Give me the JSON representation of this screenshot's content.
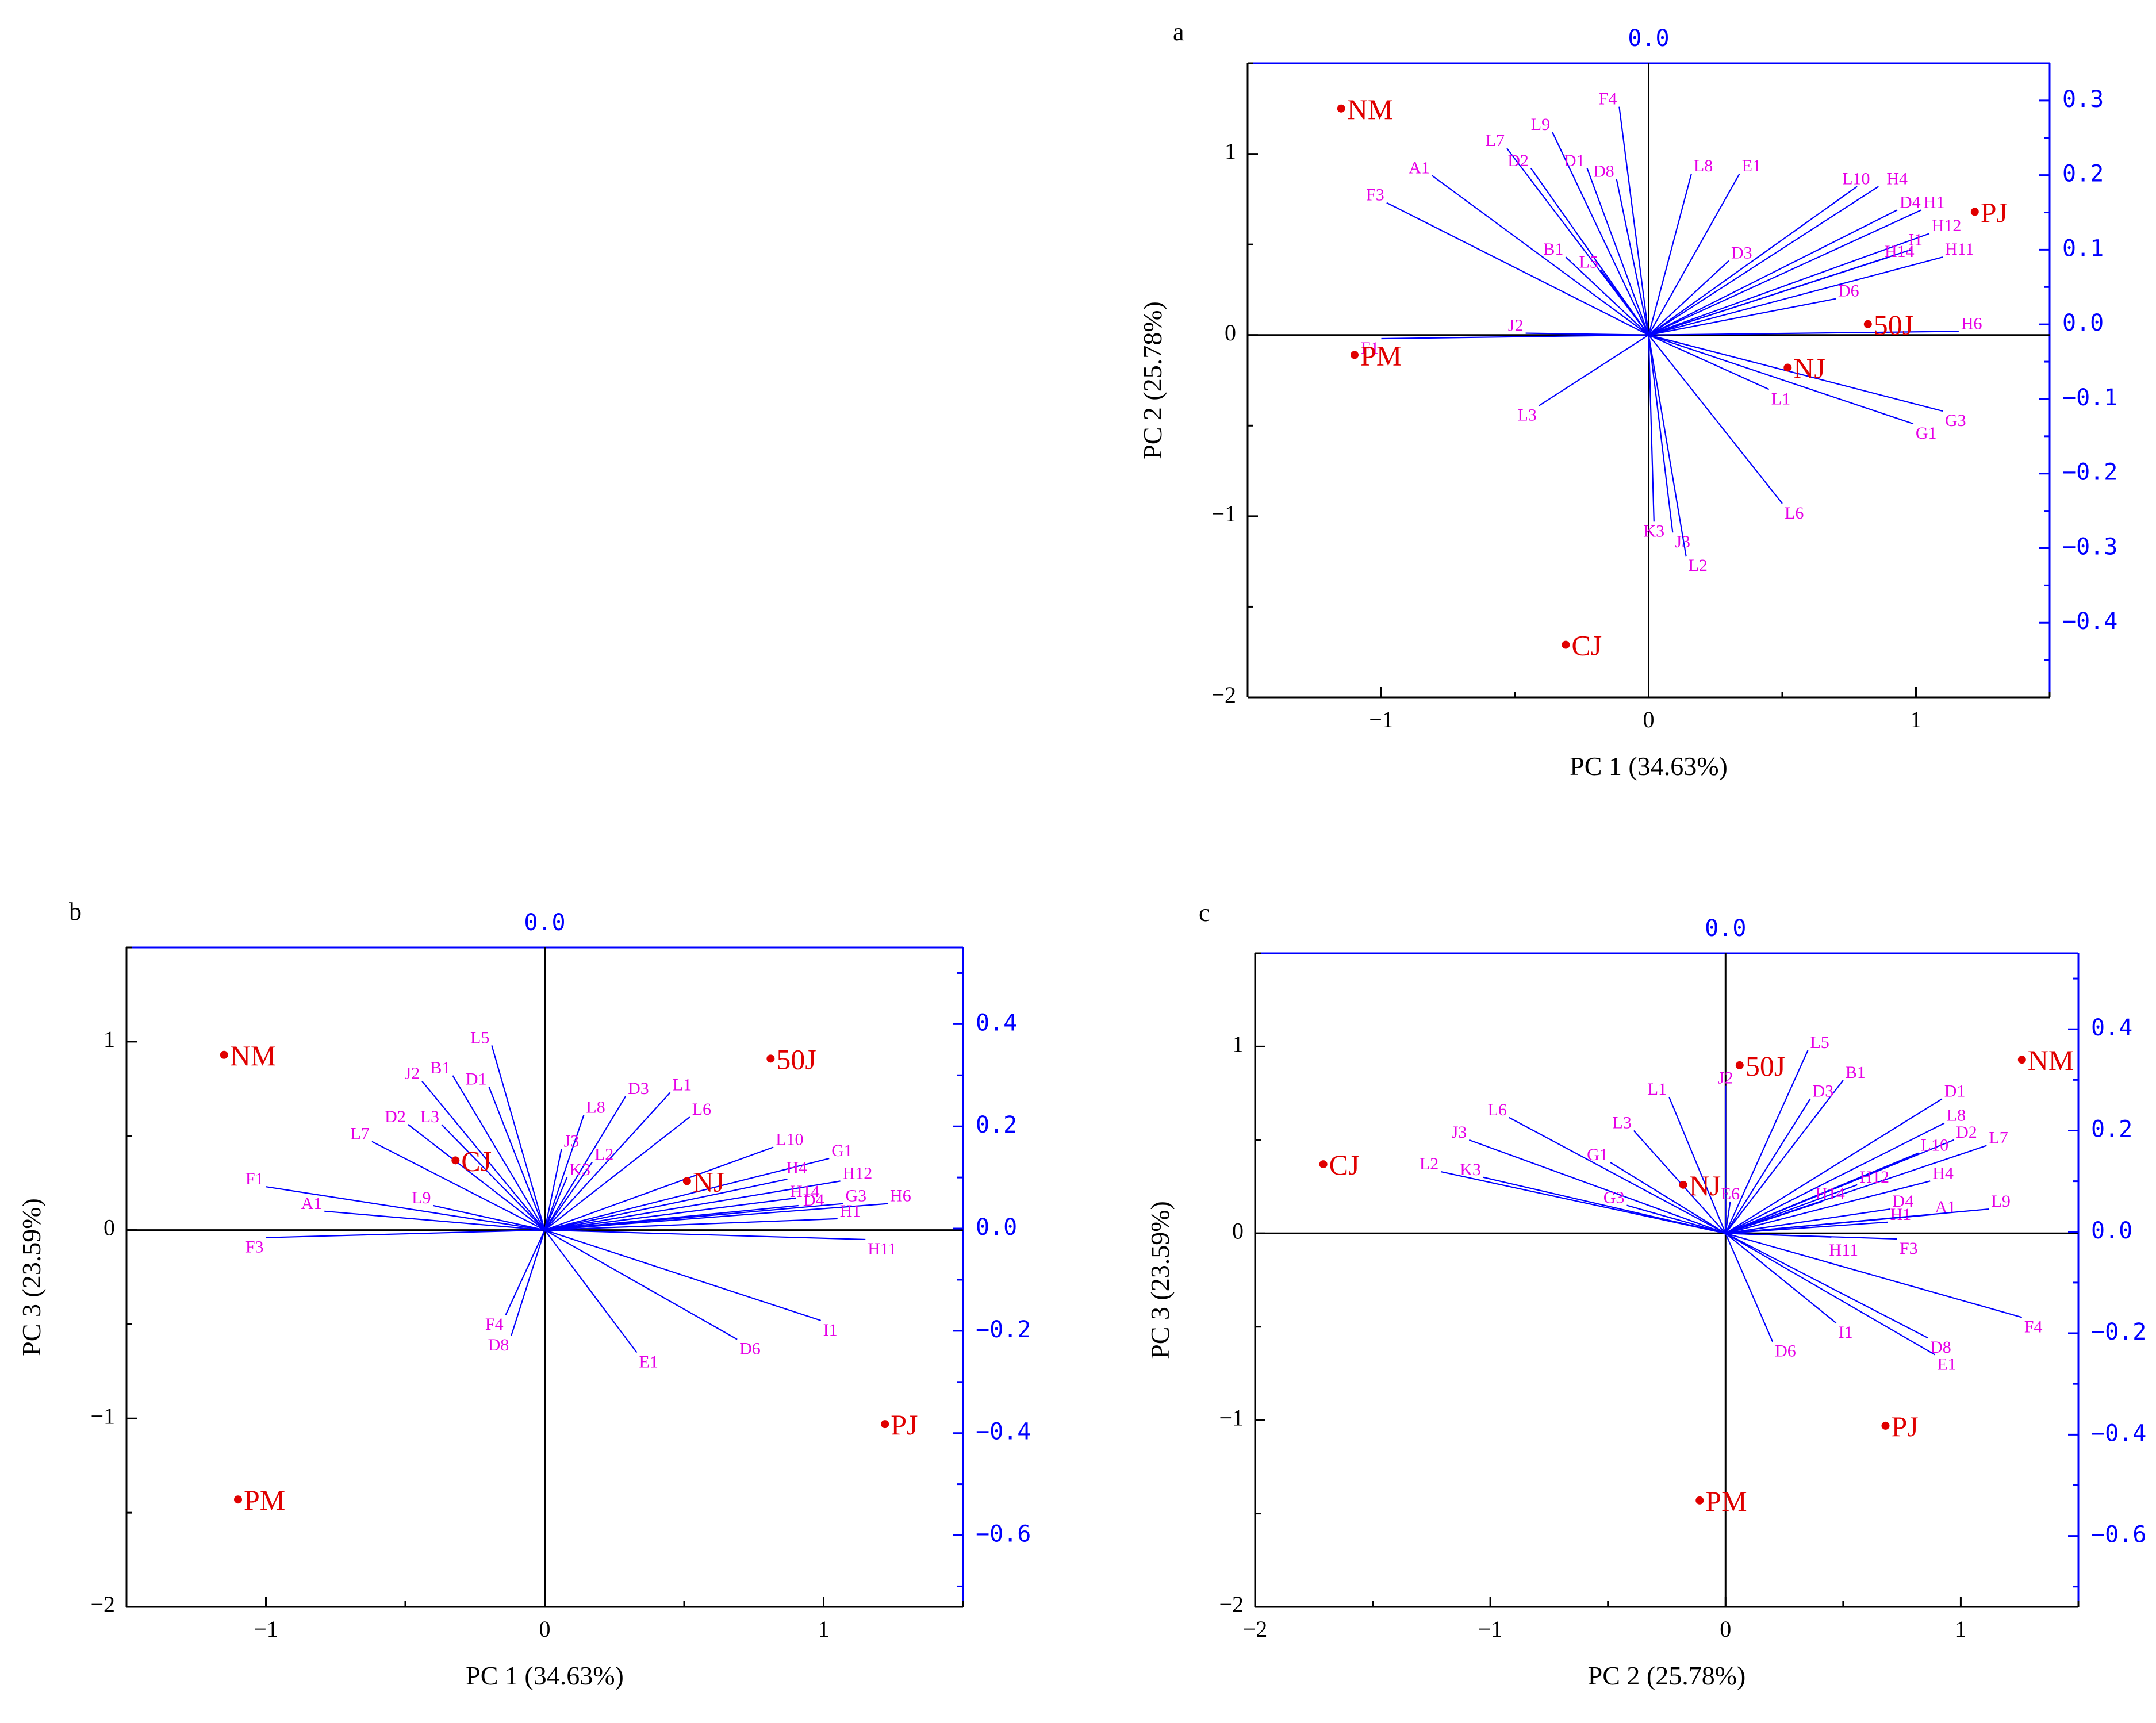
{
  "colors": {
    "frame": "#000000",
    "secondary_axis": "#0000ff",
    "loading": "#0000ff",
    "loading_label": "#e600e6",
    "score": "#e00000"
  },
  "chart_data": [
    {
      "type": "scatter",
      "panel": "a",
      "xlabel": "PC 1 (34.63%)",
      "ylabel": "PC 2 (25.78%)",
      "xlim": [
        -1.5,
        1.5
      ],
      "ylim": [
        -2,
        1.5
      ],
      "xticks": [
        -1,
        0,
        1
      ],
      "yticks": [
        -2,
        -1,
        0,
        1
      ],
      "x_tick_labels": [
        "−1",
        "0",
        "1"
      ],
      "y_tick_labels": [
        "−2",
        "−1",
        "0",
        "1"
      ],
      "top_tick_labels": [
        "0.0"
      ],
      "right_range": [
        -0.5,
        0.35
      ],
      "right_ticks": [
        -0.4,
        -0.3,
        -0.2,
        -0.1,
        0.0,
        0.1,
        0.2,
        0.3
      ],
      "right_tick_labels": [
        "−0.4",
        "−0.3",
        "−0.2",
        "−0.1",
        "0.0",
        "0.1",
        "0.2",
        "0.3"
      ],
      "scores": [
        {
          "label": "NM",
          "x": -1.15,
          "y": 1.25
        },
        {
          "label": "PJ",
          "x": 1.22,
          "y": 0.68
        },
        {
          "label": "50J",
          "x": 0.82,
          "y": 0.06
        },
        {
          "label": "NJ",
          "x": 0.52,
          "y": -0.18
        },
        {
          "label": "PM",
          "x": -1.1,
          "y": -0.11
        },
        {
          "label": "CJ",
          "x": -0.31,
          "y": -1.71
        }
      ],
      "loadings": [
        {
          "label": "F4",
          "x": -0.11,
          "y": 1.26
        },
        {
          "label": "L9",
          "x": -0.36,
          "y": 1.12
        },
        {
          "label": "L7",
          "x": -0.53,
          "y": 1.03
        },
        {
          "label": "A1",
          "x": -0.81,
          "y": 0.88
        },
        {
          "label": "D2",
          "x": -0.44,
          "y": 0.92
        },
        {
          "label": "D1",
          "x": -0.23,
          "y": 0.92
        },
        {
          "label": "D8",
          "x": -0.12,
          "y": 0.86
        },
        {
          "label": "F3",
          "x": -0.98,
          "y": 0.73
        },
        {
          "label": "B1",
          "x": -0.31,
          "y": 0.43
        },
        {
          "label": "L5",
          "x": -0.18,
          "y": 0.36
        },
        {
          "label": "L8",
          "x": 0.16,
          "y": 0.89
        },
        {
          "label": "E1",
          "x": 0.34,
          "y": 0.89
        },
        {
          "label": "L10",
          "x": 0.78,
          "y": 0.82
        },
        {
          "label": "H4",
          "x": 0.86,
          "y": 0.82
        },
        {
          "label": "D4",
          "x": 0.93,
          "y": 0.69
        },
        {
          "label": "H1",
          "x": 1.02,
          "y": 0.69
        },
        {
          "label": "H12",
          "x": 1.05,
          "y": 0.56
        },
        {
          "label": "I1",
          "x": 0.98,
          "y": 0.47
        },
        {
          "label": "H14",
          "x": 0.9,
          "y": 0.43
        },
        {
          "label": "H11",
          "x": 1.1,
          "y": 0.43
        },
        {
          "label": "D3",
          "x": 0.3,
          "y": 0.41
        },
        {
          "label": "D6",
          "x": 0.7,
          "y": 0.2
        },
        {
          "label": "H6",
          "x": 1.16,
          "y": 0.02
        },
        {
          "label": "F1",
          "x": -1.0,
          "y": -0.02
        },
        {
          "label": "J2",
          "x": -0.46,
          "y": 0.01
        },
        {
          "label": "L1",
          "x": 0.45,
          "y": -0.3
        },
        {
          "label": "G3",
          "x": 1.1,
          "y": -0.42
        },
        {
          "label": "G1",
          "x": 0.99,
          "y": -0.49
        },
        {
          "label": "L3",
          "x": -0.41,
          "y": -0.39
        },
        {
          "label": "L6",
          "x": 0.5,
          "y": -0.93
        },
        {
          "label": "K3",
          "x": 0.02,
          "y": -1.03
        },
        {
          "label": "J3",
          "x": 0.09,
          "y": -1.09
        },
        {
          "label": "L2",
          "x": 0.14,
          "y": -1.22
        }
      ]
    },
    {
      "type": "scatter",
      "panel": "b",
      "xlabel": "PC 1 (34.63%)",
      "ylabel": "PC 3 (23.59%)",
      "xlim": [
        -1.5,
        1.5
      ],
      "ylim": [
        -2,
        1.5
      ],
      "xticks": [
        -1,
        0,
        1
      ],
      "yticks": [
        -2,
        -1,
        0,
        1
      ],
      "x_tick_labels": [
        "−1",
        "0",
        "1"
      ],
      "y_tick_labels": [
        "−2",
        "−1",
        "0",
        "1"
      ],
      "top_tick_labels": [
        "0.0"
      ],
      "right_range": [
        -0.74,
        0.55
      ],
      "right_ticks": [
        -0.6,
        -0.4,
        -0.2,
        0.0,
        0.2,
        0.4
      ],
      "right_tick_labels": [
        "−0.6",
        "−0.4",
        "−0.2",
        "0.0",
        "0.2",
        "0.4"
      ],
      "scores": [
        {
          "label": "NM",
          "x": -1.15,
          "y": 0.93
        },
        {
          "label": "50J",
          "x": 0.81,
          "y": 0.91
        },
        {
          "label": "CJ",
          "x": -0.32,
          "y": 0.37
        },
        {
          "label": "NJ",
          "x": 0.51,
          "y": 0.26
        },
        {
          "label": "PJ",
          "x": 1.22,
          "y": -1.03
        },
        {
          "label": "PM",
          "x": -1.1,
          "y": -1.43
        }
      ],
      "loadings": [
        {
          "label": "L5",
          "x": -0.19,
          "y": 0.98
        },
        {
          "label": "J2",
          "x": -0.44,
          "y": 0.79
        },
        {
          "label": "B1",
          "x": -0.33,
          "y": 0.82
        },
        {
          "label": "D1",
          "x": -0.2,
          "y": 0.76
        },
        {
          "label": "D2",
          "x": -0.49,
          "y": 0.56
        },
        {
          "label": "L3",
          "x": -0.37,
          "y": 0.56
        },
        {
          "label": "L7",
          "x": -0.62,
          "y": 0.47
        },
        {
          "label": "F1",
          "x": -1.0,
          "y": 0.23
        },
        {
          "label": "A1",
          "x": -0.79,
          "y": 0.1
        },
        {
          "label": "L9",
          "x": -0.4,
          "y": 0.13
        },
        {
          "label": "F3",
          "x": -1.0,
          "y": -0.04
        },
        {
          "label": "L8",
          "x": 0.14,
          "y": 0.61
        },
        {
          "label": "D3",
          "x": 0.29,
          "y": 0.71
        },
        {
          "label": "L1",
          "x": 0.45,
          "y": 0.73
        },
        {
          "label": "L6",
          "x": 0.52,
          "y": 0.6
        },
        {
          "label": "J3",
          "x": 0.06,
          "y": 0.43
        },
        {
          "label": "L2",
          "x": 0.17,
          "y": 0.36
        },
        {
          "label": "K3",
          "x": 0.08,
          "y": 0.28
        },
        {
          "label": "L10",
          "x": 0.82,
          "y": 0.44
        },
        {
          "label": "G1",
          "x": 1.02,
          "y": 0.38
        },
        {
          "label": "H4",
          "x": 0.87,
          "y": 0.27
        },
        {
          "label": "H12",
          "x": 1.06,
          "y": 0.26
        },
        {
          "label": "H6",
          "x": 1.23,
          "y": 0.14
        },
        {
          "label": "H14",
          "x": 0.9,
          "y": 0.17
        },
        {
          "label": "D4",
          "x": 0.91,
          "y": 0.13
        },
        {
          "label": "G3",
          "x": 1.07,
          "y": 0.14
        },
        {
          "label": "H1",
          "x": 1.05,
          "y": 0.06
        },
        {
          "label": "H11",
          "x": 1.15,
          "y": -0.05
        },
        {
          "label": "I1",
          "x": 0.99,
          "y": -0.48
        },
        {
          "label": "D6",
          "x": 0.69,
          "y": -0.58
        },
        {
          "label": "E1",
          "x": 0.33,
          "y": -0.65
        },
        {
          "label": "F4",
          "x": -0.14,
          "y": -0.45
        },
        {
          "label": "D8",
          "x": -0.12,
          "y": -0.56
        }
      ]
    },
    {
      "type": "scatter",
      "panel": "c",
      "xlabel": "PC 2 (25.78%)",
      "ylabel": "PC 3 (23.59%)",
      "xlim": [
        -2,
        1.5
      ],
      "ylim": [
        -2,
        1.5
      ],
      "xticks": [
        -2,
        -1,
        0,
        1
      ],
      "yticks": [
        -2,
        -1,
        0,
        1
      ],
      "x_tick_labels": [
        "−2",
        "−1",
        "0",
        "1"
      ],
      "y_tick_labels": [
        "−2",
        "−1",
        "0",
        "1"
      ],
      "top_tick_labels": [
        "0.0"
      ],
      "right_range": [
        -0.74,
        0.55
      ],
      "right_ticks": [
        -0.6,
        -0.4,
        -0.2,
        0.0,
        0.2,
        0.4
      ],
      "right_tick_labels": [
        "−0.6",
        "−0.4",
        "−0.2",
        "0.0",
        "0.2",
        "0.4"
      ],
      "scores": [
        {
          "label": "NM",
          "x": 1.26,
          "y": 0.93
        },
        {
          "label": "50J",
          "x": 0.06,
          "y": 0.9
        },
        {
          "label": "CJ",
          "x": -1.71,
          "y": 0.37
        },
        {
          "label": "NJ",
          "x": -0.18,
          "y": 0.26
        },
        {
          "label": "PJ",
          "x": 0.68,
          "y": -1.03
        },
        {
          "label": "PM",
          "x": -0.11,
          "y": -1.43
        }
      ],
      "loadings": [
        {
          "label": "L5",
          "x": 0.35,
          "y": 0.98
        },
        {
          "label": "B1",
          "x": 0.5,
          "y": 0.82
        },
        {
          "label": "D3",
          "x": 0.36,
          "y": 0.72
        },
        {
          "label": "L1",
          "x": -0.24,
          "y": 0.73
        },
        {
          "label": "J2",
          "x": 0.0,
          "y": 0.79
        },
        {
          "label": "L6",
          "x": -0.92,
          "y": 0.62
        },
        {
          "label": "L3",
          "x": -0.39,
          "y": 0.55
        },
        {
          "label": "J3",
          "x": -1.09,
          "y": 0.5
        },
        {
          "label": "G1",
          "x": -0.49,
          "y": 0.38
        },
        {
          "label": "L2",
          "x": -1.21,
          "y": 0.33
        },
        {
          "label": "K3",
          "x": -1.03,
          "y": 0.3
        },
        {
          "label": "G3",
          "x": -0.42,
          "y": 0.15
        },
        {
          "label": "E6",
          "x": 0.02,
          "y": 0.17
        },
        {
          "label": "D1",
          "x": 0.92,
          "y": 0.72
        },
        {
          "label": "L8",
          "x": 0.93,
          "y": 0.59
        },
        {
          "label": "D2",
          "x": 0.97,
          "y": 0.5
        },
        {
          "label": "L7",
          "x": 1.11,
          "y": 0.47
        },
        {
          "label": "L10",
          "x": 0.82,
          "y": 0.43
        },
        {
          "label": "H12",
          "x": 0.56,
          "y": 0.26
        },
        {
          "label": "H4",
          "x": 0.87,
          "y": 0.28
        },
        {
          "label": "H14",
          "x": 0.41,
          "y": 0.17
        },
        {
          "label": "D4",
          "x": 0.7,
          "y": 0.13
        },
        {
          "label": "A1",
          "x": 0.88,
          "y": 0.1
        },
        {
          "label": "H1",
          "x": 0.69,
          "y": 0.06
        },
        {
          "label": "L9",
          "x": 1.12,
          "y": 0.13
        },
        {
          "label": "H11",
          "x": 0.45,
          "y": -0.02
        },
        {
          "label": "F3",
          "x": 0.73,
          "y": -0.03
        },
        {
          "label": "F4",
          "x": 1.26,
          "y": -0.45
        },
        {
          "label": "D8",
          "x": 0.86,
          "y": -0.56
        },
        {
          "label": "E1",
          "x": 0.89,
          "y": -0.65
        },
        {
          "label": "I1",
          "x": 0.47,
          "y": -0.48
        },
        {
          "label": "D6",
          "x": 0.2,
          "y": -0.58
        }
      ]
    }
  ]
}
